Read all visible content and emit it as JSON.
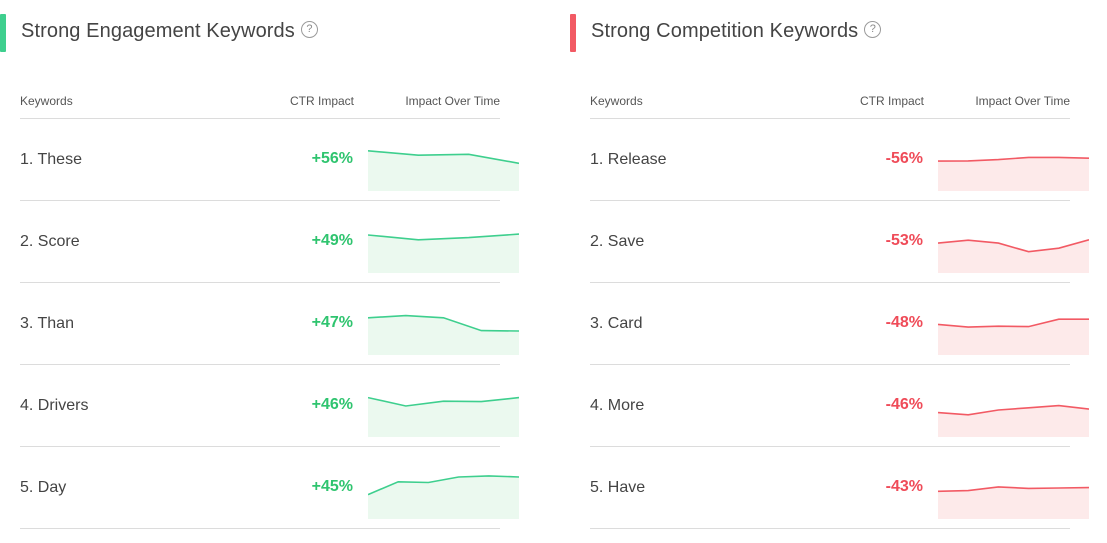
{
  "panels": [
    {
      "title": "Strong Engagement Keywords",
      "help_icon": "?",
      "accent": "#3ecf8e",
      "value_color": "#2fc46f",
      "line_color": "#3ecf8e",
      "fill_color": "#ebf9ef",
      "columns": {
        "keywords": "Keywords",
        "ctr": "CTR Impact",
        "time": "Impact Over Time"
      },
      "rows": [
        {
          "keyword": "1. These",
          "ctr": "+56%",
          "trend": [
            0.92,
            0.72,
            0.76,
            0.35
          ]
        },
        {
          "keyword": "2. Score",
          "ctr": "+49%",
          "trend": [
            0.82,
            0.6,
            0.7,
            0.86
          ]
        },
        {
          "keyword": "3. Than",
          "ctr": "+47%",
          "trend": [
            0.78,
            0.88,
            0.78,
            0.2,
            0.18
          ]
        },
        {
          "keyword": "4. Drivers",
          "ctr": "+46%",
          "trend": [
            0.88,
            0.5,
            0.72,
            0.7,
            0.88
          ]
        },
        {
          "keyword": "5. Day",
          "ctr": "+45%",
          "trend": [
            0.2,
            0.78,
            0.75,
            1.0,
            1.05,
            1.0
          ]
        }
      ]
    },
    {
      "title": "Strong Competition Keywords",
      "help_icon": "?",
      "accent": "#f25a64",
      "value_color": "#ef4b58",
      "line_color": "#f25a64",
      "fill_color": "#fdeaea",
      "columns": {
        "keywords": "Keywords",
        "ctr": "CTR Impact",
        "time": "Impact Over Time"
      },
      "rows": [
        {
          "keyword": "1. Release",
          "ctr": "-56%",
          "trend": [
            0.45,
            0.46,
            0.52,
            0.62,
            0.62,
            0.58
          ]
        },
        {
          "keyword": "2. Save",
          "ctr": "-53%",
          "trend": [
            0.45,
            0.58,
            0.45,
            0.06,
            0.22,
            0.6
          ]
        },
        {
          "keyword": "3. Card",
          "ctr": "-48%",
          "trend": [
            0.48,
            0.36,
            0.4,
            0.38,
            0.72,
            0.72
          ]
        },
        {
          "keyword": "4. More",
          "ctr": "-46%",
          "trend": [
            0.2,
            0.1,
            0.32,
            0.42,
            0.52,
            0.36
          ]
        },
        {
          "keyword": "5. Have",
          "ctr": "-43%",
          "trend": [
            0.35,
            0.38,
            0.55,
            0.48,
            0.5,
            0.52
          ]
        }
      ]
    }
  ]
}
